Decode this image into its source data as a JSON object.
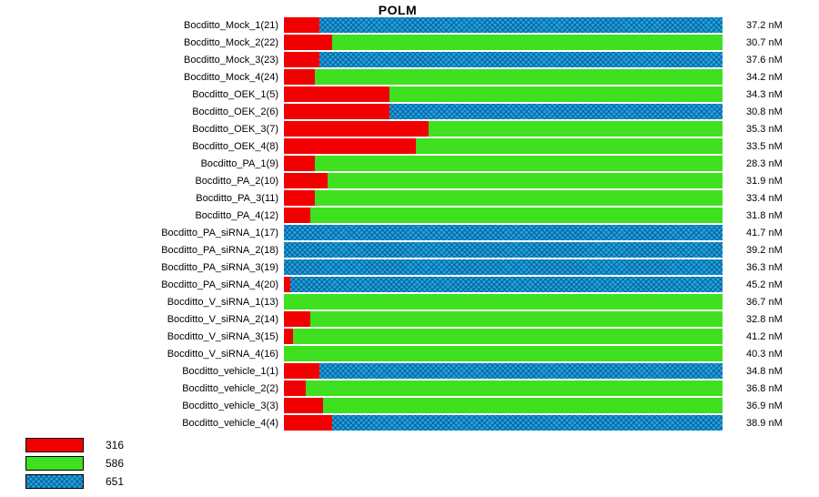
{
  "title": "POLM",
  "legend": [
    {
      "label": "316",
      "key": "red"
    },
    {
      "label": "586",
      "key": "green"
    },
    {
      "label": "651",
      "key": "blue"
    }
  ],
  "chart_data": {
    "type": "bar",
    "orientation": "horizontal",
    "stacked": true,
    "title": "POLM",
    "value_unit": "nM",
    "legend_position": "bottom-left",
    "grid": false,
    "series": [
      {
        "name": "316",
        "key": "red",
        "color": "#f20000",
        "pattern": "solid"
      },
      {
        "name": "586",
        "key": "green",
        "color": "#3fe01f",
        "pattern": "solid"
      },
      {
        "name": "651",
        "key": "blue",
        "color": "#1ea2e0",
        "pattern": "crosshatch"
      }
    ],
    "rows": [
      {
        "label": "Bocditto_Mock_1(21)",
        "value_label": "37.2 nM",
        "segments_pct": [
          8,
          0,
          92
        ]
      },
      {
        "label": "Bocditto_Mock_2(22)",
        "value_label": "30.7 nM",
        "segments_pct": [
          11,
          89,
          0
        ]
      },
      {
        "label": "Bocditto_Mock_3(23)",
        "value_label": "37.6 nM",
        "segments_pct": [
          8,
          0,
          92
        ]
      },
      {
        "label": "Bocditto_Mock_4(24)",
        "value_label": "34.2 nM",
        "segments_pct": [
          7,
          93,
          0
        ]
      },
      {
        "label": "Bocditto_OEK_1(5)",
        "value_label": "34.3 nM",
        "segments_pct": [
          24,
          76,
          0
        ]
      },
      {
        "label": "Bocditto_OEK_2(6)",
        "value_label": "30.8 nM",
        "segments_pct": [
          24,
          0,
          76
        ]
      },
      {
        "label": "Bocditto_OEK_3(7)",
        "value_label": "35.3 nM",
        "segments_pct": [
          33,
          67,
          0
        ]
      },
      {
        "label": "Bocditto_OEK_4(8)",
        "value_label": "33.5 nM",
        "segments_pct": [
          30,
          70,
          0
        ]
      },
      {
        "label": "Bocditto_PA_1(9)",
        "value_label": "28.3 nM",
        "segments_pct": [
          7,
          93,
          0
        ]
      },
      {
        "label": "Bocditto_PA_2(10)",
        "value_label": "31.9 nM",
        "segments_pct": [
          10,
          90,
          0
        ]
      },
      {
        "label": "Bocditto_PA_3(11)",
        "value_label": "33.4 nM",
        "segments_pct": [
          7,
          93,
          0
        ]
      },
      {
        "label": "Bocditto_PA_4(12)",
        "value_label": "31.8 nM",
        "segments_pct": [
          6,
          94,
          0
        ]
      },
      {
        "label": "Bocditto_PA_siRNA_1(17)",
        "value_label": "41.7 nM",
        "segments_pct": [
          0,
          0,
          100
        ]
      },
      {
        "label": "Bocditto_PA_siRNA_2(18)",
        "value_label": "39.2 nM",
        "segments_pct": [
          0,
          0,
          100
        ]
      },
      {
        "label": "Bocditto_PA_siRNA_3(19)",
        "value_label": "36.3 nM",
        "segments_pct": [
          0,
          0,
          100
        ]
      },
      {
        "label": "Bocditto_PA_siRNA_4(20)",
        "value_label": "45.2 nM",
        "segments_pct": [
          1.5,
          0,
          98.5
        ]
      },
      {
        "label": "Bocditto_V_siRNA_1(13)",
        "value_label": "36.7 nM",
        "segments_pct": [
          0,
          100,
          0
        ]
      },
      {
        "label": "Bocditto_V_siRNA_2(14)",
        "value_label": "32.8 nM",
        "segments_pct": [
          6,
          94,
          0
        ]
      },
      {
        "label": "Bocditto_V_siRNA_3(15)",
        "value_label": "41.2 nM",
        "segments_pct": [
          2,
          98,
          0
        ]
      },
      {
        "label": "Bocditto_V_siRNA_4(16)",
        "value_label": "40.3 nM",
        "segments_pct": [
          0,
          100,
          0
        ]
      },
      {
        "label": "Bocditto_vehicle_1(1)",
        "value_label": "34.8 nM",
        "segments_pct": [
          8,
          0,
          92
        ]
      },
      {
        "label": "Bocditto_vehicle_2(2)",
        "value_label": "36.8 nM",
        "segments_pct": [
          5,
          95,
          0
        ]
      },
      {
        "label": "Bocditto_vehicle_3(3)",
        "value_label": "36.9 nM",
        "segments_pct": [
          9,
          91,
          0
        ]
      },
      {
        "label": "Bocditto_vehicle_4(4)",
        "value_label": "38.9 nM",
        "segments_pct": [
          11,
          0,
          89
        ]
      }
    ]
  }
}
